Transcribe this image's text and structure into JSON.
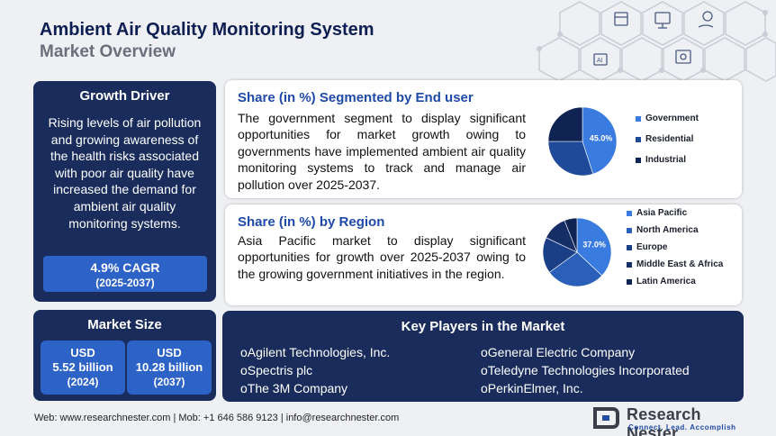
{
  "header": {
    "title": "Ambient Air Quality Monitoring System",
    "subtitle": "Market Overview"
  },
  "growth_driver": {
    "heading": "Growth Driver",
    "text": "Rising levels of air pollution and growing awareness of the health risks associated with poor air quality have increased the demand for ambient air quality monitoring systems.",
    "cagr_value": "4.9% CAGR",
    "cagr_period": "(2025-2037)"
  },
  "market_size": {
    "heading": "Market Size",
    "items": [
      {
        "currency": "USD",
        "amount": "5.52 billion",
        "year": "(2024)"
      },
      {
        "currency": "USD",
        "amount": "10.28 billion",
        "year": "(2037)"
      }
    ]
  },
  "end_user": {
    "heading": "Share (in %) Segmented by End user",
    "text": "The government segment to display significant opportunities for market growth owing to governments have implemented ambient air quality monitoring systems to track and manage air pollution over 2025-2037.",
    "pie_label": "45.0%"
  },
  "region": {
    "heading": "Share (in %) by Region",
    "text": "Asia Pacific market to display significant opportunities for growth over 2025-2037 owing to the growing government initiatives in the region.",
    "pie_label": "37.0%"
  },
  "chart_data": [
    {
      "type": "pie",
      "categories": [
        "Government",
        "Residential",
        "Industrial"
      ],
      "values": [
        45.0,
        30.0,
        25.0
      ],
      "colors": [
        "#3a7be0",
        "#1e4a99",
        "#0f2452"
      ],
      "legend_position": "right"
    },
    {
      "type": "pie",
      "categories": [
        "Asia Pacific",
        "North America",
        "Europe",
        "Middle East & Africa",
        "Latin America"
      ],
      "values": [
        37.0,
        28.0,
        17.0,
        12.0,
        6.0
      ],
      "colors": [
        "#3a7be0",
        "#2a5fba",
        "#1a3f86",
        "#162e66",
        "#0f2452"
      ],
      "legend_position": "right"
    }
  ],
  "key_players": {
    "heading": "Key Players in the Market",
    "col1": [
      "oAgilent Technologies, Inc.",
      "oSpectris plc",
      "oThe 3M Company"
    ],
    "col2": [
      "oGeneral Electric Company",
      "oTeledyne Technologies Incorporated",
      "oPerkinElmer, Inc."
    ]
  },
  "footer": {
    "text": "Web: www.researchnester.com | Mob: +1 646 586 9123 | info@researchnester.com",
    "logo_name": "Research Nester",
    "logo_tagline": "Connect. Lead. Accomplish"
  }
}
